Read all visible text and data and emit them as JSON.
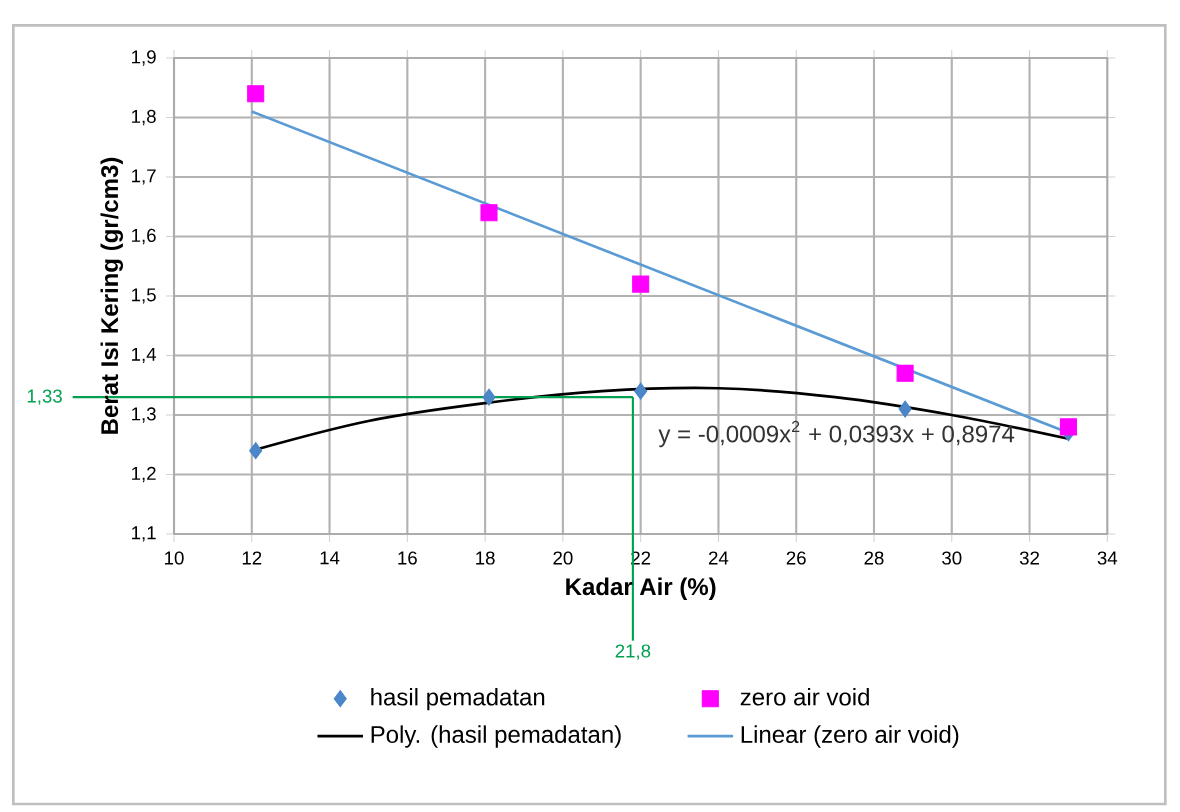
{
  "chart_data": {
    "type": "scatter",
    "xlabel": "Kadar Air (%)",
    "ylabel": "Berat Isi Kering (gr/cm3)",
    "xlim": [
      10,
      34
    ],
    "xticks": [
      10,
      12,
      14,
      16,
      18,
      20,
      22,
      24,
      26,
      28,
      30,
      32,
      34
    ],
    "ylim": [
      1.1,
      1.9
    ],
    "yticks": [
      {
        "value": 1.1,
        "label": "1,1"
      },
      {
        "value": 1.2,
        "label": "1,2"
      },
      {
        "value": 1.3,
        "label": "1,3"
      },
      {
        "value": 1.4,
        "label": "1,4"
      },
      {
        "value": 1.5,
        "label": "1,5"
      },
      {
        "value": 1.6,
        "label": "1,6"
      },
      {
        "value": 1.7,
        "label": "1,7"
      },
      {
        "value": 1.8,
        "label": "1,8"
      },
      {
        "value": 1.9,
        "label": "1,9"
      }
    ],
    "grid": true,
    "legend": "bottom",
    "series": [
      {
        "name": "hasil pemadatan",
        "marker": "diamond",
        "color": "#4a86c8",
        "x": [
          12.1,
          18.1,
          22.0,
          28.8,
          33.0
        ],
        "values": [
          1.24,
          1.33,
          1.34,
          1.31,
          1.27
        ]
      },
      {
        "name": "zero air void",
        "marker": "square",
        "color": "#ff00ff",
        "x": [
          12.1,
          18.1,
          22.0,
          28.8,
          33.0
        ],
        "values": [
          1.84,
          1.64,
          1.52,
          1.37,
          1.28
        ]
      },
      {
        "name": "Poly. (hasil pemadatan)",
        "type": "line",
        "marker": "none",
        "line_style": "solid",
        "color": "#000000",
        "x": [
          12,
          15,
          18,
          21,
          24,
          27,
          30,
          33
        ],
        "values": [
          1.24,
          1.29,
          1.32,
          1.34,
          1.345,
          1.33,
          1.3,
          1.26
        ]
      },
      {
        "name": "Linear (zero air void)",
        "type": "line",
        "marker": "none",
        "line_style": "solid",
        "color": "#5b9bd5",
        "x": [
          12,
          33
        ],
        "values": [
          1.81,
          1.27
        ]
      }
    ],
    "ref_lines": [
      {
        "axis": "x",
        "value": 21.8,
        "label": "21,8",
        "color": "#00a050"
      },
      {
        "axis": "y",
        "value": 1.33,
        "label": "1,33",
        "color": "#00a050"
      }
    ],
    "annotations": [
      "y = -0,0009x$^{2}$ + 0,0393x + 0,8974"
    ]
  }
}
